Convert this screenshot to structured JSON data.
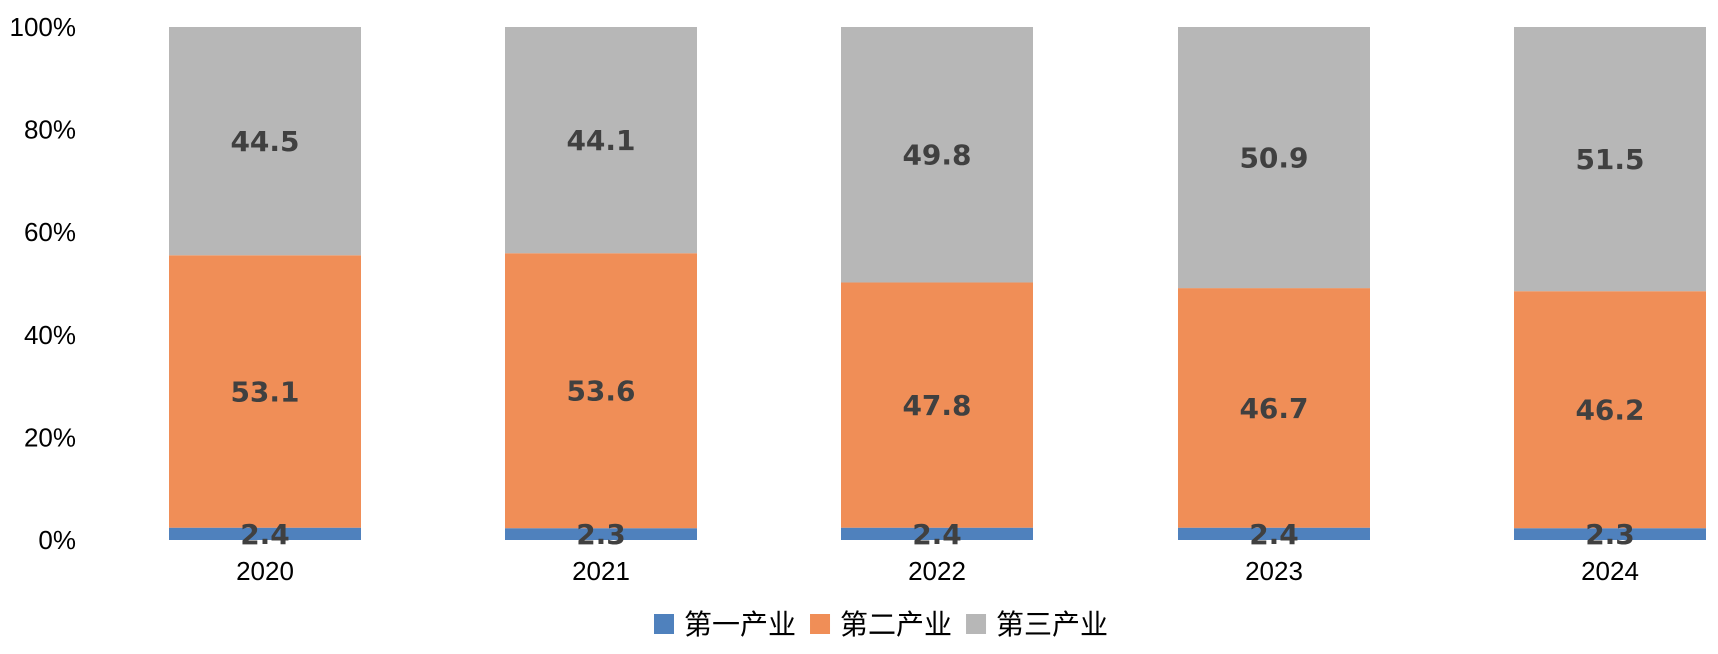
{
  "chart_data": {
    "type": "bar",
    "stacked": true,
    "percent_stacked": true,
    "title": "",
    "xlabel": "",
    "ylabel": "",
    "categories": [
      "2020",
      "2021",
      "2022",
      "2023",
      "2024"
    ],
    "series": [
      {
        "name": "第一产业",
        "color": "#4f81bd",
        "values": [
          2.4,
          2.3,
          2.4,
          2.4,
          2.3
        ]
      },
      {
        "name": "第二产业",
        "color": "#f08e57",
        "values": [
          53.1,
          53.6,
          47.8,
          46.7,
          46.2
        ]
      },
      {
        "name": "第三产业",
        "color": "#b7b7b7",
        "values": [
          44.5,
          44.1,
          49.8,
          50.9,
          51.5
        ]
      }
    ],
    "y_ticks": [
      "0%",
      "20%",
      "40%",
      "60%",
      "80%",
      "100%"
    ],
    "ylim": [
      0,
      100
    ],
    "grid": false,
    "legend_position": "bottom-center",
    "data_label_color": "#404040"
  }
}
